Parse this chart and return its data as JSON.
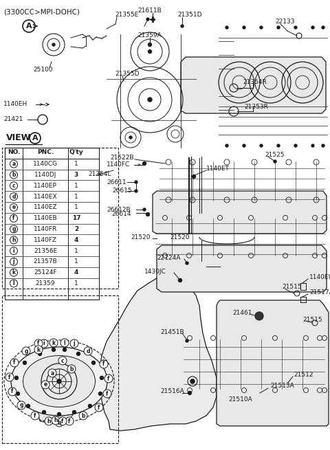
{
  "bg_color": "#f5f5f5",
  "line_color": "#1a1a1a",
  "title": "(3300CC>MPI-DOHC)",
  "table_rows": [
    [
      "a",
      "1140CG",
      "1"
    ],
    [
      "b",
      "1140DJ",
      "3"
    ],
    [
      "c",
      "1140EP",
      "1"
    ],
    [
      "d",
      "1140EX",
      "1"
    ],
    [
      "e",
      "1140EZ",
      "1"
    ],
    [
      "f",
      "1140EB",
      "17"
    ],
    [
      "g",
      "1140FR",
      "2"
    ],
    [
      "h",
      "1140FZ",
      "4"
    ],
    [
      "i",
      "21356E",
      "1"
    ],
    [
      "j",
      "21357B",
      "1"
    ],
    [
      "k",
      "25124F",
      "4"
    ],
    [
      "l",
      "21359",
      "1"
    ]
  ]
}
